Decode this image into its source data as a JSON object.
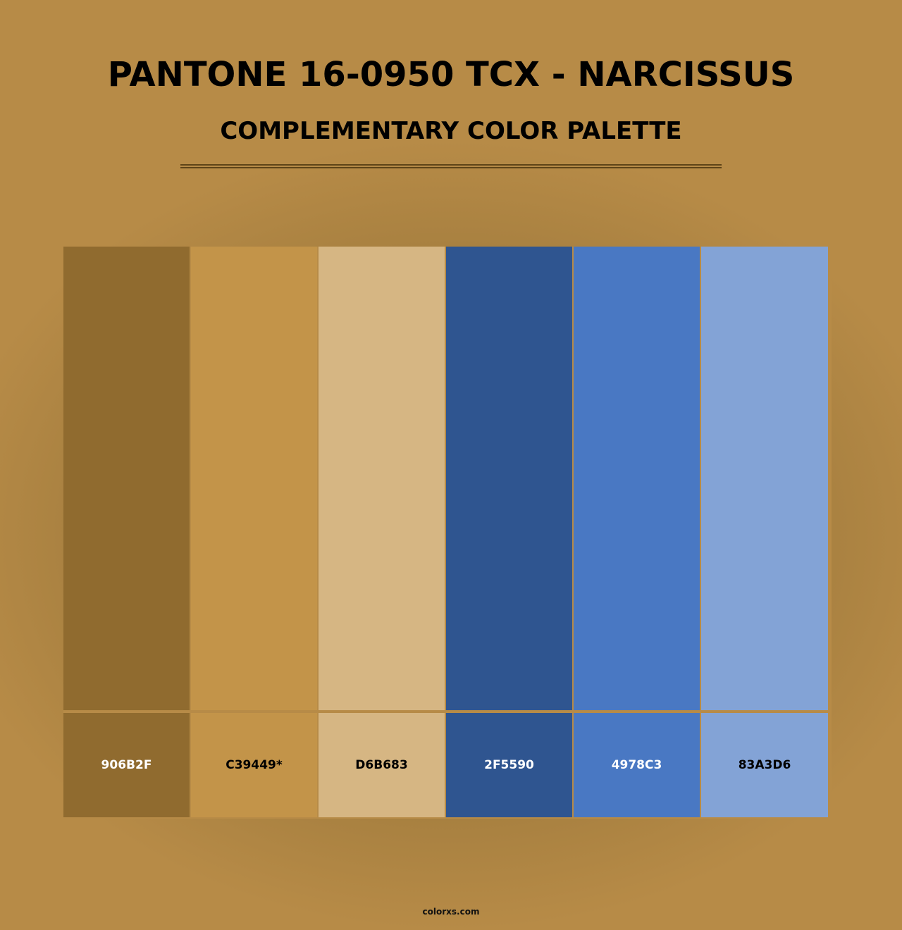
{
  "title": "PANTONE 16-0950 TCX - NARCISSUS",
  "subtitle": "COMPLEMENTARY COLOR PALETTE",
  "swatches": [
    {
      "hex": "906B2F",
      "color": "#906B2F",
      "text_color": "#ffffff"
    },
    {
      "hex": "C39449*",
      "color": "#C39449",
      "text_color": "#000000"
    },
    {
      "hex": "D6B683",
      "color": "#D6B683",
      "text_color": "#000000"
    },
    {
      "hex": "2F5590",
      "color": "#2F5590",
      "text_color": "#ffffff"
    },
    {
      "hex": "4978C3",
      "color": "#4978C3",
      "text_color": "#ffffff"
    },
    {
      "hex": "83A3D6",
      "color": "#83A3D6",
      "text_color": "#000000"
    }
  ],
  "footer": "colorxs.com"
}
